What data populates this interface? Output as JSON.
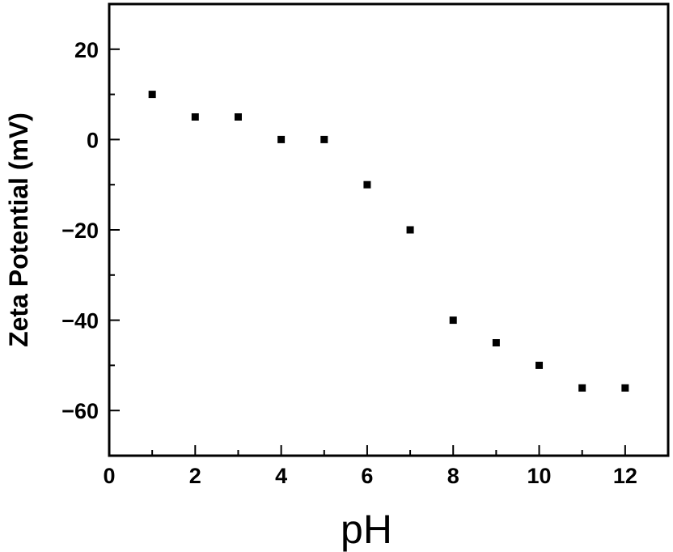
{
  "chart_data": {
    "type": "scatter",
    "title": "",
    "xlabel": "pH",
    "ylabel": "Zeta Potential (mV)",
    "xlim": [
      0,
      13
    ],
    "ylim": [
      -70,
      30
    ],
    "xticks": [
      "0",
      "2",
      "4",
      "6",
      "8",
      "10",
      "12"
    ],
    "yticks": [
      "20",
      "0",
      "-20",
      "-40",
      "-60"
    ],
    "grid": false,
    "legend": "none",
    "marker": "square",
    "color": "#000000",
    "series": [
      {
        "x": [
          1,
          2,
          3,
          4,
          5,
          6,
          7,
          8,
          9,
          10,
          11,
          12
        ],
        "y": [
          10,
          5,
          5,
          0,
          0,
          -10,
          -20,
          -40,
          -45,
          -50,
          -55,
          -55
        ]
      }
    ]
  }
}
